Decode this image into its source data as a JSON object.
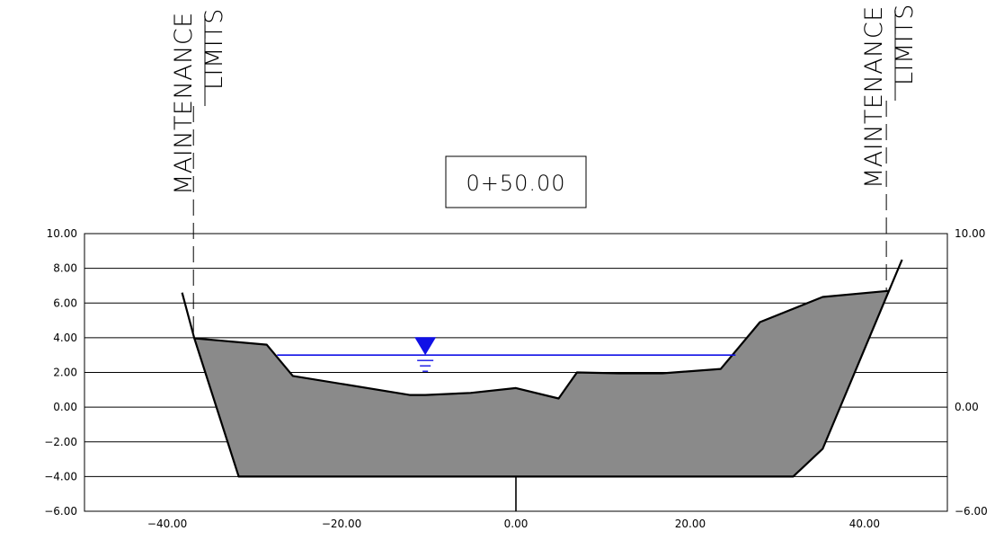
{
  "station": "0+50.00",
  "left_limit": {
    "line1": "MAINTENANCE",
    "line2": "LIMITS"
  },
  "right_limit": {
    "line1": "MAINTENANCE",
    "line2": "LIMITS"
  },
  "colors": {
    "fill": "#8a8a8a",
    "water": "#1010e6",
    "line": "#000000"
  },
  "chart_data": {
    "type": "area",
    "xlim": [
      -49.5,
      49.5
    ],
    "ylim": [
      -6,
      10
    ],
    "left_y_ticks": [
      {
        "v": 10,
        "label": "10.00"
      },
      {
        "v": 8,
        "label": "8.00"
      },
      {
        "v": 6,
        "label": "6.00"
      },
      {
        "v": 4,
        "label": "4.00"
      },
      {
        "v": 2,
        "label": "2.00"
      },
      {
        "v": 0,
        "label": "0.00"
      },
      {
        "v": -2,
        "label": "-2.00"
      },
      {
        "v": -4,
        "label": "-4.00"
      },
      {
        "v": -6,
        "label": "-6.00"
      }
    ],
    "right_y_ticks": [
      {
        "v": 10,
        "label": "10.00"
      },
      {
        "v": 0,
        "label": "0.00"
      },
      {
        "v": -6,
        "label": "-6.00"
      }
    ],
    "x_ticks": [
      {
        "v": -40,
        "label": "-40.00"
      },
      {
        "v": -20,
        "label": "-20.00"
      },
      {
        "v": 0,
        "label": "0.00"
      },
      {
        "v": 20,
        "label": "20.00"
      },
      {
        "v": 40,
        "label": "40.00"
      }
    ],
    "grid_lines": [
      8,
      6,
      4,
      2,
      0,
      -2,
      -4
    ],
    "section_polygon": [
      [
        -36.9,
        3.97
      ],
      [
        -28.6,
        3.6
      ],
      [
        -25.6,
        1.8
      ],
      [
        -12.2,
        0.7
      ],
      [
        -10.4,
        0.7
      ],
      [
        -5.2,
        0.82
      ],
      [
        0.0,
        1.1
      ],
      [
        4.9,
        0.5
      ],
      [
        7.0,
        2.0
      ],
      [
        11.8,
        1.95
      ],
      [
        16.8,
        1.95
      ],
      [
        23.5,
        2.2
      ],
      [
        28.0,
        4.9
      ],
      [
        35.2,
        6.35
      ],
      [
        42.8,
        6.7
      ],
      [
        35.2,
        -2.4
      ],
      [
        31.8,
        -4.0
      ],
      [
        -31.8,
        -4.0
      ]
    ],
    "existing_ground_left": [
      [
        -38.3,
        6.6
      ],
      [
        -36.9,
        3.97
      ]
    ],
    "existing_ground_right": [
      [
        42.8,
        6.7
      ],
      [
        44.3,
        8.5
      ]
    ],
    "water_surface": {
      "elevation": 3.0,
      "x_start": -27.4,
      "x_end": 25.2,
      "symbol_x": -10.4
    },
    "maintenance_limits_x": [
      -37.0,
      42.5
    ],
    "centerline": {
      "x": 0,
      "from": -6,
      "to": -4
    }
  }
}
